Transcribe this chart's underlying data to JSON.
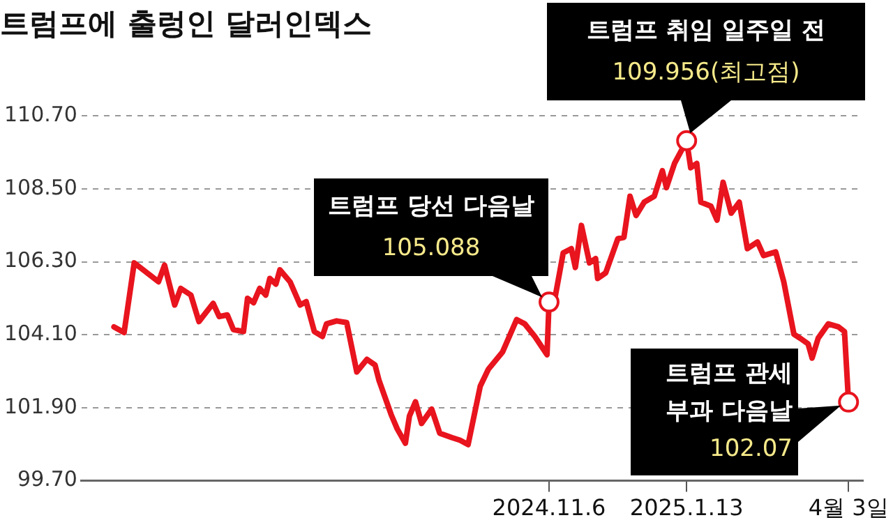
{
  "chart_data": {
    "type": "line",
    "title": "트럼프에 출렁인 달러인덱스",
    "x": [
      "2024-04-05",
      "2024-04-10",
      "2024-04-15",
      "2024-04-27",
      "2024-04-30",
      "2024-05-05",
      "2024-05-08",
      "2024-05-13",
      "2024-05-17",
      "2024-05-24",
      "2024-05-27",
      "2024-05-31",
      "2024-06-03",
      "2024-06-08",
      "2024-06-10",
      "2024-06-13",
      "2024-06-16",
      "2024-06-19",
      "2024-06-21",
      "2024-06-24",
      "2024-06-26",
      "2024-07-01",
      "2024-07-06",
      "2024-07-09",
      "2024-07-13",
      "2024-07-17",
      "2024-07-19",
      "2024-07-24",
      "2024-07-29",
      "2024-08-03",
      "2024-08-08",
      "2024-08-12",
      "2024-08-14",
      "2024-08-20",
      "2024-08-23",
      "2024-08-27",
      "2024-08-29",
      "2024-09-01",
      "2024-09-04",
      "2024-09-09",
      "2024-09-13",
      "2024-09-19",
      "2024-09-23",
      "2024-09-27",
      "2024-10-03",
      "2024-10-07",
      "2024-10-14",
      "2024-10-21",
      "2024-10-25",
      "2024-10-30",
      "2024-11-05",
      "2024-11-06",
      "2024-11-08",
      "2024-11-13",
      "2024-11-17",
      "2024-11-19",
      "2024-11-22",
      "2024-11-26",
      "2024-11-29",
      "2024-11-30",
      "2024-12-04",
      "2024-12-10",
      "2024-12-13",
      "2024-12-16",
      "2024-12-19",
      "2024-12-23",
      "2024-12-28",
      "2025-01-01",
      "2025-01-03",
      "2025-01-07",
      "2025-01-13",
      "2025-01-15",
      "2025-01-18",
      "2025-01-20",
      "2025-01-25",
      "2025-01-28",
      "2025-01-31",
      "2025-02-04",
      "2025-02-08",
      "2025-02-12",
      "2025-02-17",
      "2025-02-20",
      "2025-02-26",
      "2025-03-02",
      "2025-03-07",
      "2025-03-10",
      "2025-03-14",
      "2025-03-16",
      "2025-03-19",
      "2025-03-24",
      "2025-03-29",
      "2025-04-01",
      "2025-04-03"
    ],
    "series": [
      {
        "color": "#e8141e",
        "values": [
          104.34,
          104.17,
          106.27,
          105.7,
          106.2,
          105.0,
          105.5,
          105.3,
          104.5,
          105.05,
          104.65,
          104.7,
          104.26,
          104.2,
          105.2,
          105.07,
          105.5,
          105.3,
          105.8,
          105.63,
          106.06,
          105.7,
          105.0,
          105.1,
          104.2,
          104.05,
          104.43,
          104.52,
          104.47,
          102.98,
          103.36,
          103.19,
          102.72,
          101.69,
          101.26,
          100.83,
          101.65,
          102.08,
          101.43,
          101.86,
          101.13,
          101.0,
          100.92,
          100.79,
          102.55,
          103.06,
          103.58,
          104.56,
          104.43,
          104.05,
          103.5,
          105.088,
          104.9,
          106.57,
          106.7,
          106.13,
          107.4,
          106.27,
          106.4,
          105.8,
          105.97,
          107.0,
          107.04,
          108.28,
          107.7,
          108.1,
          108.28,
          109.05,
          108.54,
          109.27,
          109.956,
          109.14,
          109.27,
          108.1,
          107.98,
          107.56,
          108.7,
          107.77,
          108.1,
          106.7,
          106.9,
          106.49,
          106.6,
          105.7,
          104.12,
          104.0,
          103.83,
          103.4,
          104.0,
          104.43,
          104.34,
          104.2,
          102.07
        ]
      }
    ],
    "xlim": [
      "2024-03-20",
      "2025-04-10"
    ],
    "xticks": [
      {
        "value": "2024-11-06",
        "label": "2024.11.6"
      },
      {
        "value": "2025-01-13",
        "label": "2025.1.13"
      },
      {
        "value": "2025-04-03",
        "label": "4월 3일"
      }
    ],
    "ylim": [
      99.7,
      110.7
    ],
    "yticks": [
      {
        "value": 99.7,
        "label": "99.70"
      },
      {
        "value": 101.9,
        "label": "101.90"
      },
      {
        "value": 104.1,
        "label": "104.10"
      },
      {
        "value": 106.3,
        "label": "106.30"
      },
      {
        "value": 108.5,
        "label": "108.50"
      },
      {
        "value": 110.7,
        "label": "110.70"
      }
    ],
    "grid": "y",
    "annotations": [
      {
        "text": "트럼프 당선 다음날\n105.088",
        "x": "2024-11-06",
        "y": 105.088
      },
      {
        "text": "트럼프 취임 일주일 전\n109.956(최고점)",
        "x": "2025-01-13",
        "y": 109.956
      },
      {
        "text": "트럼프 관세\n부과 다음날\n102.07",
        "x": "2025-04-03",
        "y": 102.07
      }
    ]
  }
}
